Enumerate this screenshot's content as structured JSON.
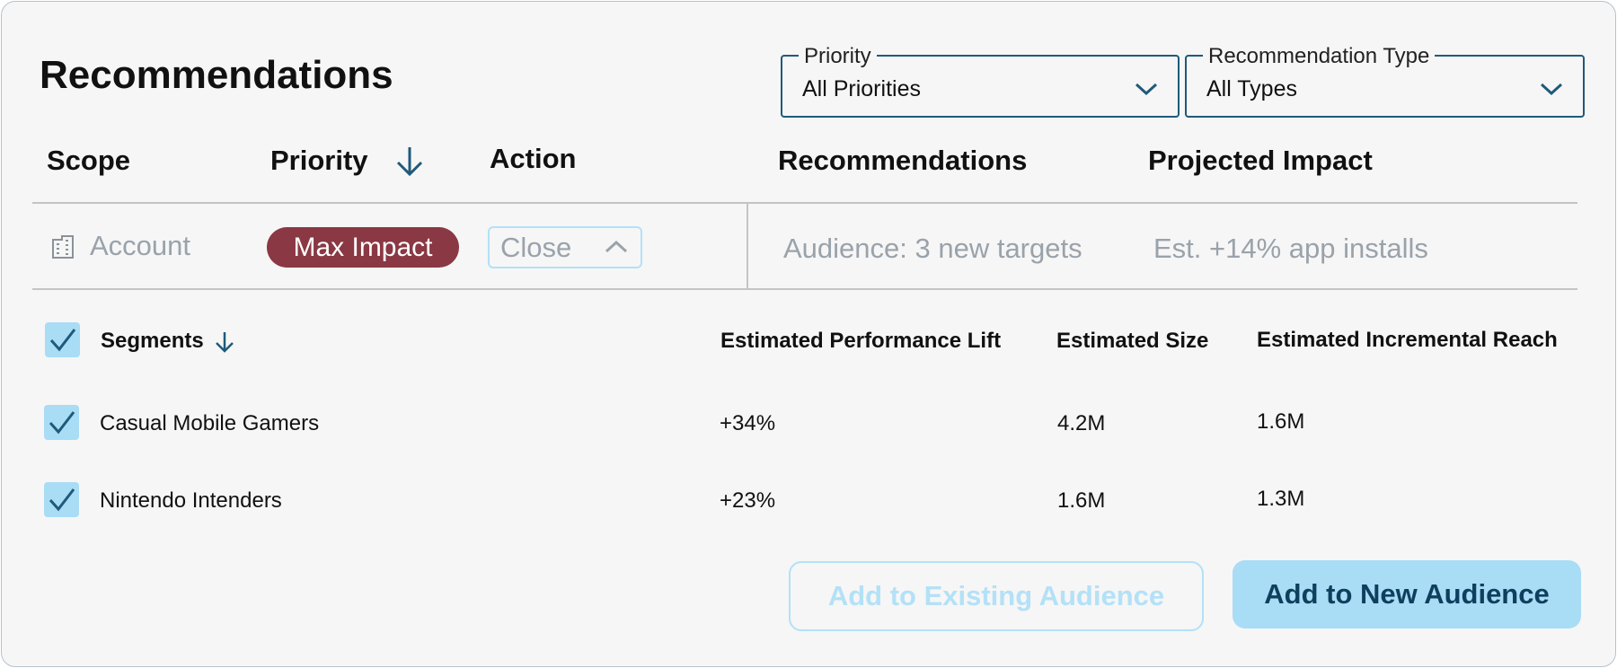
{
  "header": {
    "title": "Recommendations"
  },
  "filters": [
    {
      "label": "Priority",
      "value": "All Priorities"
    },
    {
      "label": "Recommendation Type",
      "value": "All Types"
    }
  ],
  "table": {
    "columns": [
      "Scope",
      "Priority",
      "Action",
      "Recommendations",
      "Projected Impact"
    ],
    "row": {
      "scope": "Account",
      "priority": "Max Impact",
      "action": "Close",
      "recommendation": "Audience: 3 new targets",
      "impact": "Est. +14% app installs"
    }
  },
  "segments": {
    "columns": [
      "Segments",
      "Estimated Performance Lift",
      "Estimated Size",
      "Estimated Incremental Reach"
    ],
    "rows": [
      [
        "Casual Mobile Gamers",
        "+34%",
        "4.2M",
        "1.6M"
      ],
      [
        "Nintendo Intenders",
        "+23%",
        "1.6M",
        "1.3M"
      ]
    ]
  },
  "buttons": [
    "Add to Existing Audience",
    "Add to New Audience"
  ]
}
